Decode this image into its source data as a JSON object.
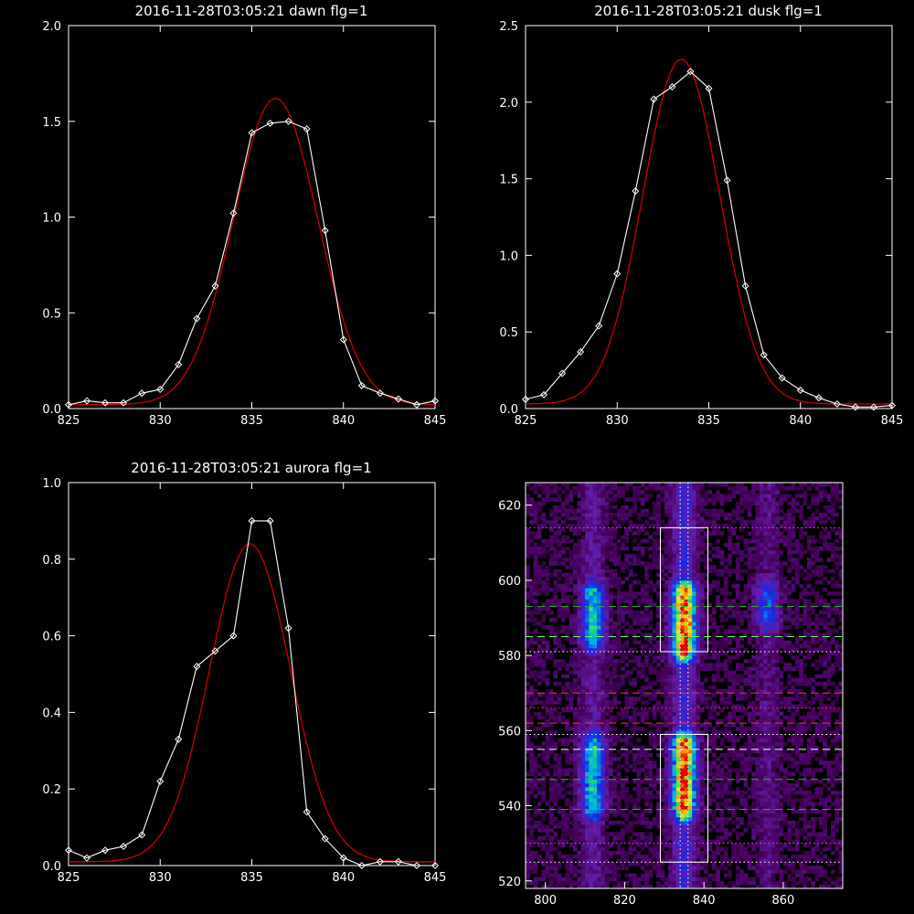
{
  "colors": {
    "background": "#000000",
    "data": "#ffffff",
    "fit": "#cc0000"
  },
  "chart_data": [
    {
      "type": "line",
      "title": "2016-11-28T03:05:21 dawn flg=1",
      "xlim": [
        825,
        845
      ],
      "ylim": [
        0,
        2.0
      ],
      "xticks": [
        825,
        830,
        835,
        840,
        845
      ],
      "yticks": [
        0.0,
        0.5,
        1.0,
        1.5,
        2.0
      ],
      "yticklabels": [
        "0.0",
        "0.5",
        "1.0",
        "1.5",
        "2.0"
      ],
      "x": [
        825,
        826,
        827,
        828,
        829,
        830,
        831,
        832,
        833,
        834,
        835,
        836,
        837,
        838,
        839,
        840,
        841,
        842,
        843,
        844,
        845
      ],
      "series": [
        {
          "kind": "data",
          "values": [
            0.02,
            0.04,
            0.03,
            0.03,
            0.08,
            0.1,
            0.23,
            0.47,
            0.64,
            1.02,
            1.44,
            1.49,
            1.5,
            1.46,
            0.93,
            0.36,
            0.12,
            0.08,
            0.05,
            0.02,
            0.04
          ]
        },
        {
          "kind": "fit",
          "curve": "gaussian",
          "center": 836.3,
          "sigma": 2.3,
          "amplitude": 1.6,
          "offset": 0.02
        }
      ]
    },
    {
      "type": "line",
      "title": "2016-11-28T03:05:21 dusk flg=1",
      "xlim": [
        825,
        845
      ],
      "ylim": [
        0,
        2.5
      ],
      "xticks": [
        825,
        830,
        835,
        840,
        845
      ],
      "yticks": [
        0.0,
        0.5,
        1.0,
        1.5,
        2.0,
        2.5
      ],
      "yticklabels": [
        "0.0",
        "0.5",
        "1.0",
        "1.5",
        "2.0",
        "2.5"
      ],
      "x": [
        825,
        826,
        827,
        828,
        829,
        830,
        831,
        832,
        833,
        834,
        835,
        836,
        837,
        838,
        839,
        840,
        841,
        842,
        843,
        844,
        845
      ],
      "series": [
        {
          "kind": "data",
          "values": [
            0.06,
            0.09,
            0.23,
            0.37,
            0.54,
            0.88,
            1.42,
            2.02,
            2.1,
            2.2,
            2.09,
            1.49,
            0.8,
            0.35,
            0.2,
            0.12,
            0.07,
            0.03,
            0.01,
            0.01,
            0.02
          ]
        },
        {
          "kind": "fit",
          "curve": "gaussian",
          "center": 833.5,
          "sigma": 2.1,
          "amplitude": 2.25,
          "offset": 0.03
        }
      ]
    },
    {
      "type": "line",
      "title": "2016-11-28T03:05:21 aurora flg=1",
      "xlim": [
        825,
        845
      ],
      "ylim": [
        0,
        1.0
      ],
      "xticks": [
        825,
        830,
        835,
        840,
        845
      ],
      "yticks": [
        0.0,
        0.2,
        0.4,
        0.6,
        0.8,
        1.0
      ],
      "yticklabels": [
        "0.0",
        "0.2",
        "0.4",
        "0.6",
        "0.8",
        "1.0"
      ],
      "x": [
        825,
        826,
        827,
        828,
        829,
        830,
        831,
        832,
        833,
        834,
        835,
        836,
        837,
        838,
        839,
        840,
        841,
        842,
        843,
        844,
        845
      ],
      "series": [
        {
          "kind": "data",
          "values": [
            0.04,
            0.02,
            0.04,
            0.05,
            0.08,
            0.22,
            0.33,
            0.52,
            0.56,
            0.6,
            0.9,
            0.9,
            0.62,
            0.14,
            0.07,
            0.02,
            0.0,
            0.01,
            0.01,
            0.0,
            0.0
          ]
        },
        {
          "kind": "fit",
          "curve": "gaussian",
          "center": 834.9,
          "sigma": 2.2,
          "amplitude": 0.83,
          "offset": 0.01
        }
      ]
    },
    {
      "type": "heatmap",
      "title": "",
      "xlim": [
        795,
        875
      ],
      "ylim": [
        518,
        626
      ],
      "xticks": [
        800,
        820,
        840,
        860
      ],
      "yticks": [
        520,
        540,
        560,
        580,
        600,
        620
      ],
      "columns": [
        {
          "center": 812,
          "ranges": [
            [
              585,
              596
            ],
            [
              540,
              556
            ]
          ],
          "peak": 0.55
        },
        {
          "center": 835,
          "ranges": [
            [
              582,
              596
            ],
            [
              540,
              556
            ]
          ],
          "peak": 1.0
        },
        {
          "center": 856,
          "ranges": [
            [
              590,
              597
            ]
          ],
          "peak": 0.35
        }
      ],
      "boxes": [
        {
          "x": [
            829,
            841
          ],
          "y": [
            581,
            614
          ]
        },
        {
          "x": [
            829,
            841
          ],
          "y": [
            525,
            559
          ]
        }
      ],
      "dotted_vlines": [
        834,
        836
      ],
      "hlines": [
        {
          "y": 614,
          "color": "#ff40ff",
          "style": "dotted"
        },
        {
          "y": 593,
          "color": "#20c020",
          "style": "dashed"
        },
        {
          "y": 585,
          "color": "#60ff60",
          "style": "dashed"
        },
        {
          "y": 581,
          "color": "#ffffff",
          "style": "dotted"
        },
        {
          "y": 570,
          "color": "#ff3030",
          "style": "dashed"
        },
        {
          "y": 566,
          "color": "#ff3030",
          "style": "dotted"
        },
        {
          "y": 562,
          "color": "#ff3030",
          "style": "dashed"
        },
        {
          "y": 559,
          "color": "#ffffff",
          "style": "dotted"
        },
        {
          "y": 555,
          "color": "#ffffff",
          "style": "dashed"
        },
        {
          "y": 547,
          "color": "#20c020",
          "style": "dashed"
        },
        {
          "y": 539,
          "color": "#20c020",
          "style": "dashed"
        },
        {
          "y": 530,
          "color": "#ff40ff",
          "style": "dotted"
        },
        {
          "y": 525,
          "color": "#ffffff",
          "style": "dotted"
        }
      ]
    }
  ]
}
